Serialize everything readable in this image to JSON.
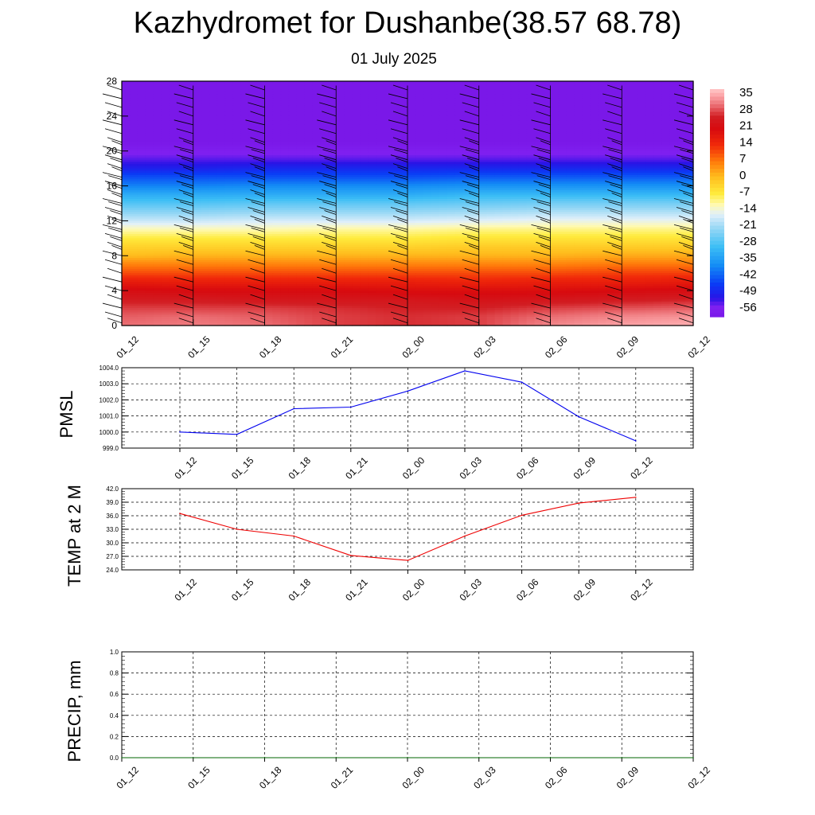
{
  "title": "Kazhydromet for Dushanbe(38.57 68.78)",
  "subtitle": "01 July 2025",
  "colors": {
    "pmsl_line": "#0000ee",
    "temp_line": "#ee0000",
    "precip_line": "#006400",
    "barb": "#000000",
    "grid": "#000000"
  },
  "chart_data": [
    {
      "id": "cross_section",
      "type": "heatmap",
      "x": [
        "01_12",
        "01_15",
        "01_18",
        "01_21",
        "02_00",
        "02_03",
        "02_06",
        "02_09",
        "02_12"
      ],
      "y_ticks": [
        0,
        4,
        8,
        12,
        16,
        20,
        24,
        28
      ],
      "ylim": [
        0,
        28
      ],
      "colorbar": {
        "labels": [
          "35",
          "28",
          "21",
          "14",
          "7",
          "0",
          "-7",
          "-14",
          "-21",
          "-28",
          "-35",
          "-42",
          "-49",
          "-56"
        ],
        "range": [
          -60,
          38
        ]
      },
      "levels_y": [
        0,
        1,
        2,
        3,
        4,
        5,
        6,
        7,
        8,
        9,
        10,
        11,
        12,
        13,
        14,
        15,
        16,
        17,
        18,
        19,
        20,
        21,
        22,
        24,
        28
      ],
      "temperature_profile": [
        [
          31,
          30,
          28,
          25,
          22,
          17,
          11,
          6,
          0,
          -3,
          -7,
          -12,
          -18,
          -23,
          -28,
          -33,
          -39,
          -44,
          -50,
          -54,
          -57,
          -60,
          -60,
          -60,
          -60
        ],
        [
          32,
          31,
          28,
          25,
          21,
          16,
          11,
          6,
          1,
          -3,
          -7,
          -12,
          -18,
          -23,
          -28,
          -33,
          -39,
          -44,
          -50,
          -54,
          -57,
          -60,
          -60,
          -60,
          -60
        ],
        [
          31,
          30,
          28,
          24,
          21,
          16,
          11,
          6,
          1,
          -3,
          -7,
          -12,
          -17,
          -22,
          -27,
          -33,
          -38,
          -44,
          -49,
          -54,
          -57,
          -60,
          -60,
          -60,
          -60
        ],
        [
          28,
          28,
          27,
          24,
          21,
          16,
          11,
          6,
          1,
          -3,
          -7,
          -11,
          -17,
          -22,
          -27,
          -33,
          -38,
          -44,
          -49,
          -54,
          -57,
          -60,
          -60,
          -60,
          -60
        ],
        [
          27,
          27,
          26,
          24,
          20,
          16,
          11,
          6,
          1,
          -3,
          -7,
          -11,
          -17,
          -22,
          -27,
          -33,
          -38,
          -44,
          -49,
          -54,
          -57,
          -60,
          -60,
          -60,
          -60
        ],
        [
          28,
          28,
          26,
          23,
          20,
          15,
          11,
          6,
          1,
          -2,
          -6,
          -10,
          -16,
          -21,
          -26,
          -31,
          -37,
          -43,
          -49,
          -54,
          -57,
          -60,
          -60,
          -60,
          -60
        ],
        [
          33,
          31,
          28,
          24,
          20,
          16,
          11,
          6,
          1,
          -2,
          -6,
          -10,
          -15,
          -20,
          -25,
          -31,
          -37,
          -43,
          -49,
          -54,
          -57,
          -60,
          -60,
          -60,
          -60
        ],
        [
          35,
          33,
          29,
          25,
          21,
          16,
          12,
          7,
          2,
          -2,
          -6,
          -10,
          -15,
          -20,
          -25,
          -31,
          -37,
          -43,
          -49,
          -54,
          -57,
          -60,
          -60,
          -60,
          -60
        ],
        [
          36,
          34,
          30,
          26,
          22,
          17,
          12,
          7,
          2,
          -2,
          -6,
          -10,
          -15,
          -20,
          -25,
          -31,
          -37,
          -43,
          -49,
          -54,
          -57,
          -60,
          -60,
          -60,
          -60
        ]
      ],
      "wind_barb_heights": [
        0.3,
        1,
        2,
        3,
        4,
        5,
        6,
        7,
        8,
        9,
        10,
        11,
        12,
        13,
        14,
        15,
        16,
        17,
        18,
        19,
        20,
        21,
        22,
        23,
        24,
        25,
        26,
        27
      ],
      "wind_barb_columns": [
        "01_12",
        "01_15",
        "01_18",
        "01_21",
        "02_00",
        "02_03",
        "02_06",
        "02_09",
        "02_12"
      ]
    },
    {
      "id": "pmsl",
      "type": "line",
      "ylabel": "PMSL",
      "x": [
        "01_12",
        "01_15",
        "01_18",
        "01_21",
        "02_00",
        "02_03",
        "02_06",
        "02_09",
        "02_12"
      ],
      "values": [
        1000.0,
        999.85,
        1001.45,
        1001.55,
        1002.55,
        1003.8,
        1003.1,
        1000.95,
        999.45
      ],
      "ylim": [
        999.0,
        1004.0
      ],
      "y_ticks": [
        "999.0",
        "1000.0",
        "1001.0",
        "1002.0",
        "1003.0",
        "1004.0"
      ],
      "grid": true
    },
    {
      "id": "temp2m",
      "type": "line",
      "ylabel": "TEMP at 2 M",
      "x": [
        "01_12",
        "01_15",
        "01_18",
        "01_21",
        "02_00",
        "02_03",
        "02_06",
        "02_09",
        "02_12"
      ],
      "values": [
        36.5,
        33.0,
        31.5,
        27.2,
        26.1,
        31.5,
        36.1,
        38.8,
        40.1
      ],
      "ylim": [
        24.0,
        42.0
      ],
      "y_ticks": [
        "24.0",
        "27.0",
        "30.0",
        "33.0",
        "36.0",
        "39.0",
        "42.0"
      ],
      "grid": true
    },
    {
      "id": "precip",
      "type": "line",
      "ylabel": "PRECIP, mm",
      "x": [
        "01_12",
        "01_15",
        "01_18",
        "01_21",
        "02_00",
        "02_03",
        "02_06",
        "02_09",
        "02_12"
      ],
      "values": [
        0,
        0,
        0,
        0,
        0,
        0,
        0,
        0,
        0
      ],
      "ylim": [
        0.0,
        1.0
      ],
      "y_ticks": [
        "0.0",
        "0.2",
        "0.4",
        "0.6",
        "0.8",
        "1.0"
      ],
      "grid": true
    }
  ]
}
